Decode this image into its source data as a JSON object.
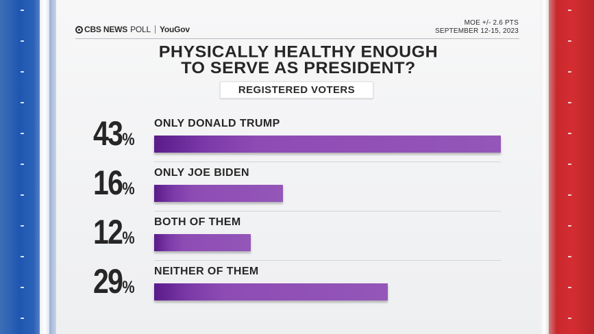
{
  "header": {
    "brand_cbs": "CBS NEWS",
    "brand_poll": "POLL",
    "brand_partner": "YouGov",
    "moe": "MOE +/- 2.6 PTS",
    "dates": "SEPTEMBER 12-15, 2023"
  },
  "colors": {
    "bar_start": "#5a1c8a",
    "bar_end": "#9456b9",
    "left_flag": "#1f56b0",
    "right_flag": "#d42d31"
  },
  "chart_data": {
    "type": "bar",
    "title_line1": "PHYSICALLY HEALTHY ENOUGH",
    "title_line2": "TO SERVE AS PRESIDENT?",
    "subtitle": "REGISTERED VOTERS",
    "categories": [
      "ONLY DONALD TRUMP",
      "ONLY JOE BIDEN",
      "BOTH OF THEM",
      "NEITHER OF THEM"
    ],
    "values": [
      43,
      16,
      12,
      29
    ],
    "value_labels": [
      "43",
      "16",
      "12",
      "29"
    ],
    "unit": "%",
    "xlim": [
      0,
      43
    ]
  }
}
